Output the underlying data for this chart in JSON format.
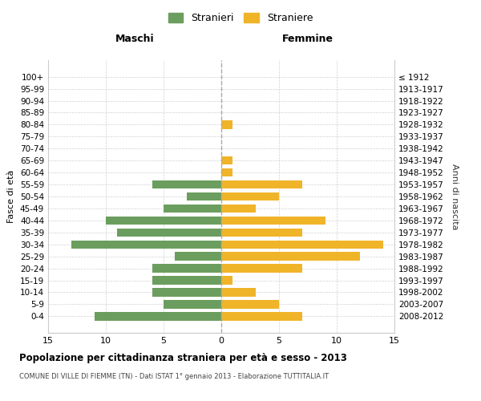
{
  "age_groups": [
    "100+",
    "95-99",
    "90-94",
    "85-89",
    "80-84",
    "75-79",
    "70-74",
    "65-69",
    "60-64",
    "55-59",
    "50-54",
    "45-49",
    "40-44",
    "35-39",
    "30-34",
    "25-29",
    "20-24",
    "15-19",
    "10-14",
    "5-9",
    "0-4"
  ],
  "birth_years": [
    "≤ 1912",
    "1913-1917",
    "1918-1922",
    "1923-1927",
    "1928-1932",
    "1933-1937",
    "1938-1942",
    "1943-1947",
    "1948-1952",
    "1953-1957",
    "1958-1962",
    "1963-1967",
    "1968-1972",
    "1973-1977",
    "1978-1982",
    "1983-1987",
    "1988-1992",
    "1993-1997",
    "1998-2002",
    "2003-2007",
    "2008-2012"
  ],
  "maschi": [
    0,
    0,
    0,
    0,
    0,
    0,
    0,
    0,
    0,
    6,
    3,
    5,
    10,
    9,
    13,
    4,
    6,
    6,
    6,
    5,
    11
  ],
  "femmine": [
    0,
    0,
    0,
    0,
    1,
    0,
    0,
    1,
    1,
    7,
    5,
    3,
    9,
    7,
    14,
    12,
    7,
    1,
    3,
    5,
    7
  ],
  "color_maschi": "#6b9e5e",
  "color_femmine": "#f0b429",
  "title": "Popolazione per cittadinanza straniera per età e sesso - 2013",
  "subtitle": "COMUNE DI VILLE DI FIEMME (TN) - Dati ISTAT 1° gennaio 2013 - Elaborazione TUTTITALIA.IT",
  "xlabel_left": "Maschi",
  "xlabel_right": "Femmine",
  "ylabel_left": "Fasce di età",
  "ylabel_right": "Anni di nascita",
  "legend_stranieri": "Stranieri",
  "legend_straniere": "Straniere",
  "xlim": 15,
  "background_color": "#ffffff",
  "grid_color": "#cccccc"
}
